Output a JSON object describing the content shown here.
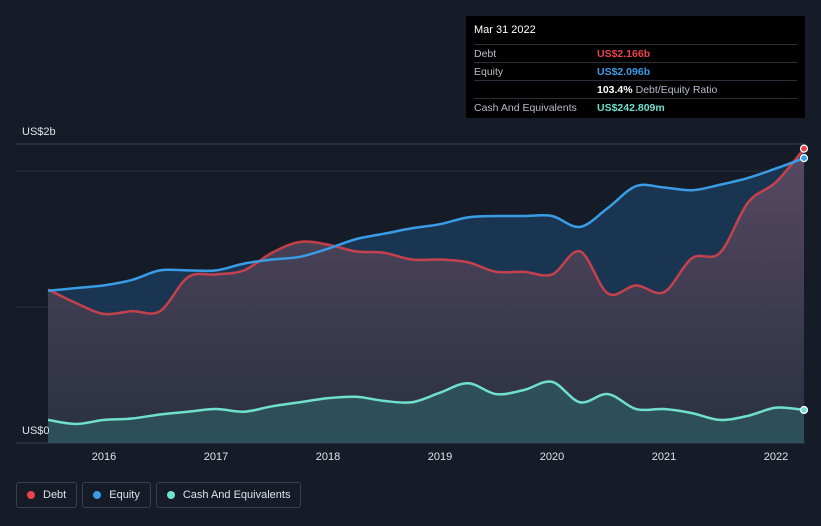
{
  "tooltip": {
    "date": "Mar 31 2022",
    "rows": [
      {
        "label": "Debt",
        "value": "US$2.166b"
      },
      {
        "label": "Equity",
        "value": "US$2.096b"
      },
      {
        "label": "",
        "value": "103.4%",
        "suffix": "Debt/Equity Ratio"
      },
      {
        "label": "Cash And Equivalents",
        "value": "US$242.809m"
      }
    ]
  },
  "colors": {
    "debt": "#e9434b",
    "equity": "#3a9ce5",
    "cash": "#70e0cd",
    "background": "#151b27"
  },
  "legend": [
    {
      "name": "Debt",
      "color": "#e9434b"
    },
    {
      "name": "Equity",
      "color": "#3a9ce5"
    },
    {
      "name": "Cash And Equivalents",
      "color": "#70e0cd"
    }
  ],
  "chart_data": {
    "type": "area",
    "yaxis_labels": [
      "US$2b",
      "US$0"
    ],
    "x_tick_labels": [
      "2016",
      "2017",
      "2018",
      "2019",
      "2020",
      "2021",
      "2022"
    ],
    "ylim": [
      0,
      2.2
    ],
    "xlim": [
      2015.5,
      2022.25
    ],
    "grid": true,
    "legend_position": "bottom-left",
    "series": [
      {
        "name": "Debt",
        "x": [
          2015.5,
          2015.75,
          2016.0,
          2016.25,
          2016.5,
          2016.75,
          2017.0,
          2017.25,
          2017.5,
          2017.75,
          2018.0,
          2018.25,
          2018.5,
          2018.75,
          2019.0,
          2019.25,
          2019.5,
          2019.75,
          2020.0,
          2020.25,
          2020.5,
          2020.75,
          2021.0,
          2021.25,
          2021.5,
          2021.75,
          2022.0,
          2022.25
        ],
        "values": [
          1.13,
          1.03,
          0.95,
          0.97,
          0.97,
          1.22,
          1.24,
          1.27,
          1.4,
          1.48,
          1.46,
          1.41,
          1.4,
          1.35,
          1.35,
          1.33,
          1.26,
          1.26,
          1.24,
          1.41,
          1.1,
          1.16,
          1.11,
          1.36,
          1.4,
          1.77,
          1.92,
          2.166
        ]
      },
      {
        "name": "Equity",
        "x": [
          2015.5,
          2015.75,
          2016.0,
          2016.25,
          2016.5,
          2016.75,
          2017.0,
          2017.25,
          2017.5,
          2017.75,
          2018.0,
          2018.25,
          2018.5,
          2018.75,
          2019.0,
          2019.25,
          2019.5,
          2019.75,
          2020.0,
          2020.25,
          2020.5,
          2020.75,
          2021.0,
          2021.25,
          2021.5,
          2021.75,
          2022.0,
          2022.25
        ],
        "values": [
          1.12,
          1.14,
          1.16,
          1.2,
          1.27,
          1.27,
          1.27,
          1.32,
          1.35,
          1.37,
          1.43,
          1.5,
          1.54,
          1.58,
          1.61,
          1.66,
          1.67,
          1.67,
          1.67,
          1.59,
          1.73,
          1.89,
          1.88,
          1.86,
          1.9,
          1.95,
          2.02,
          2.096
        ]
      },
      {
        "name": "Cash And Equivalents",
        "x": [
          2015.5,
          2015.75,
          2016.0,
          2016.25,
          2016.5,
          2016.75,
          2017.0,
          2017.25,
          2017.5,
          2017.75,
          2018.0,
          2018.25,
          2018.5,
          2018.75,
          2019.0,
          2019.25,
          2019.5,
          2019.75,
          2020.0,
          2020.25,
          2020.5,
          2020.75,
          2021.0,
          2021.25,
          2021.5,
          2021.75,
          2022.0,
          2022.25
        ],
        "values": [
          0.17,
          0.14,
          0.17,
          0.18,
          0.21,
          0.23,
          0.25,
          0.23,
          0.27,
          0.3,
          0.33,
          0.34,
          0.31,
          0.3,
          0.37,
          0.44,
          0.36,
          0.39,
          0.45,
          0.3,
          0.36,
          0.25,
          0.25,
          0.22,
          0.17,
          0.2,
          0.26,
          0.243
        ]
      }
    ]
  }
}
